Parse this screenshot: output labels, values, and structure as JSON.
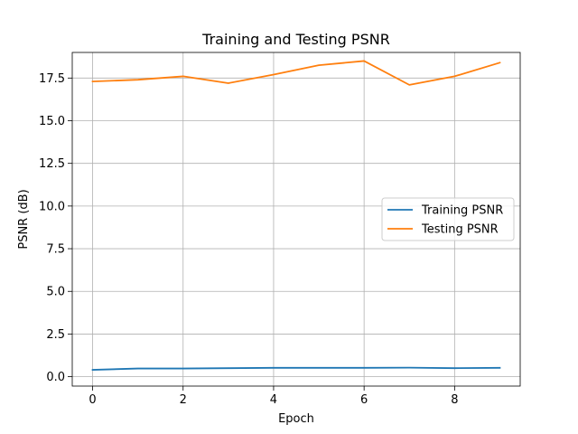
{
  "chart_data": {
    "type": "line",
    "title": "Training and Testing PSNR",
    "xlabel": "Epoch",
    "ylabel": "PSNR (dB)",
    "x": [
      0,
      1,
      2,
      3,
      4,
      5,
      6,
      7,
      8,
      9
    ],
    "xlim": [
      -0.45,
      9.45
    ],
    "ylim": [
      -0.55,
      19.0
    ],
    "xticks": [
      0,
      2,
      4,
      6,
      8
    ],
    "xtick_labels": [
      "0",
      "2",
      "4",
      "6",
      "8"
    ],
    "yticks": [
      0,
      2.5,
      5,
      7.5,
      10,
      12.5,
      15,
      17.5
    ],
    "ytick_labels": [
      "0.0",
      "2.5",
      "5.0",
      "7.5",
      "10.0",
      "12.5",
      "15.0",
      "17.5"
    ],
    "grid": true,
    "legend_position": "center-right",
    "series": [
      {
        "name": "Training PSNR",
        "color": "#1f77b4",
        "values": [
          0.4,
          0.48,
          0.48,
          0.5,
          0.52,
          0.52,
          0.52,
          0.53,
          0.5,
          0.52
        ]
      },
      {
        "name": "Testing PSNR",
        "color": "#ff7f0e",
        "values": [
          17.3,
          17.4,
          17.6,
          17.2,
          17.7,
          18.25,
          18.5,
          17.1,
          17.6,
          18.4
        ]
      }
    ]
  }
}
